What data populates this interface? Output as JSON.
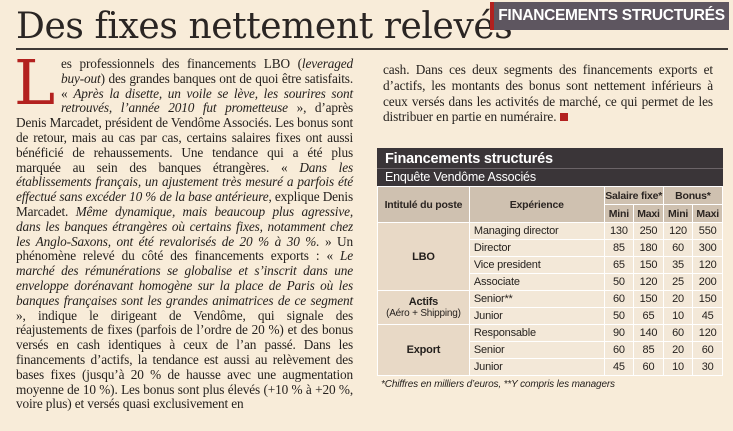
{
  "headline": "Des fixes nettement relevés",
  "rubric": "FINANCEMENTS STRUCTURÉS",
  "article": {
    "dropcap": "L",
    "left": [
      {
        "t": "es professionnels des financements LBO ("
      },
      {
        "t": "leveraged buy-out",
        "i": true
      },
      {
        "t": ") des grandes banques ont de quoi être satisfaits. « "
      },
      {
        "t": "Après la disette, un voile se lève, les sourires sont retrouvés, l’année 2010 fut prometteuse",
        "i": true
      },
      {
        "t": " », d’après Denis Marcadet, président de Vendôme Associés. Les bonus sont de retour, mais au cas par cas, certains salaires fixes ont aussi bénéficié de rehaussements. Une tendance qui a été plus marquée au sein des banques étrangères. « "
      },
      {
        "t": "Dans les établissements français, un ajustement très mesuré a parfois été effectué sans excéder 10 % de la base antérieure",
        "i": true
      },
      {
        "t": ", explique Denis Marcadet. "
      },
      {
        "t": "Même dynamique, mais beaucoup plus agressive, dans les banques étrangères où certains fixes, notamment chez les Anglo-Saxons, ont été revalorisés de 20 % à 30 %.",
        "i": true
      },
      {
        "t": " » Un phénomène relevé du côté des financements exports : « "
      },
      {
        "t": "Le marché des rémunérations se globalise et s’inscrit dans une enveloppe dorénavant homogène sur la place de Paris où les banques françaises sont les grandes animatrices de ce segment",
        "i": true
      },
      {
        "t": " », indique le dirigeant de Vendôme, qui signale des réajustements de fixes (parfois de l’ordre de 20 %) et des bonus versés en cash identiques à ceux de l’an passé. Dans les financements d’actifs, la tendance est aussi au relèvement des bases fixes (jusqu’à 20 % de hausse avec une augmentation moyenne de 10 %). Les bonus sont plus élevés (+10 % à +20 %, voire plus) et versés quasi exclusivement en"
      }
    ],
    "right": "cash. Dans ces deux segments des financements exports et d’actifs, les montants des bonus sont nettement inférieurs à ceux versés dans les activités de marché, ce qui permet de les distribuer en partie en numéraire."
  },
  "table": {
    "title": "Financements structurés",
    "subtitle": "Enquête Vendôme Associés",
    "headers": {
      "poste": "Intitulé du poste",
      "experience": "Expérience",
      "salaire": "Salaire fixe*",
      "bonus": "Bonus*",
      "mini": "Mini",
      "maxi": "Maxi"
    },
    "groups": [
      {
        "name": "LBO",
        "sub": "",
        "rows": [
          {
            "exp": "Managing director",
            "v": [
              "130",
              "250",
              "120",
              "550"
            ]
          },
          {
            "exp": "Director",
            "v": [
              "85",
              "180",
              "60",
              "300"
            ]
          },
          {
            "exp": "Vice president",
            "v": [
              "65",
              "150",
              "35",
              "120"
            ]
          },
          {
            "exp": "Associate",
            "v": [
              "50",
              "120",
              "25",
              "200"
            ]
          }
        ]
      },
      {
        "name": "Actifs",
        "sub": "(Aéro + Shipping)",
        "rows": [
          {
            "exp": "Senior**",
            "v": [
              "60",
              "150",
              "20",
              "150"
            ]
          },
          {
            "exp": "Junior",
            "v": [
              "50",
              "65",
              "10",
              "45"
            ]
          }
        ]
      },
      {
        "name": "Export",
        "sub": "",
        "rows": [
          {
            "exp": "Responsable",
            "v": [
              "90",
              "140",
              "60",
              "120"
            ]
          },
          {
            "exp": "Senior",
            "v": [
              "60",
              "85",
              "20",
              "60"
            ]
          },
          {
            "exp": "Junior",
            "v": [
              "45",
              "60",
              "10",
              "30"
            ]
          }
        ]
      }
    ],
    "footnote": "*Chiffres en milliers d’euros, **Y compris les managers"
  },
  "colors": {
    "accent": "#b3211f",
    "paper": "#f8ecd9",
    "header_dark": "#3a3538",
    "rubric_bg": "#5e5660"
  }
}
